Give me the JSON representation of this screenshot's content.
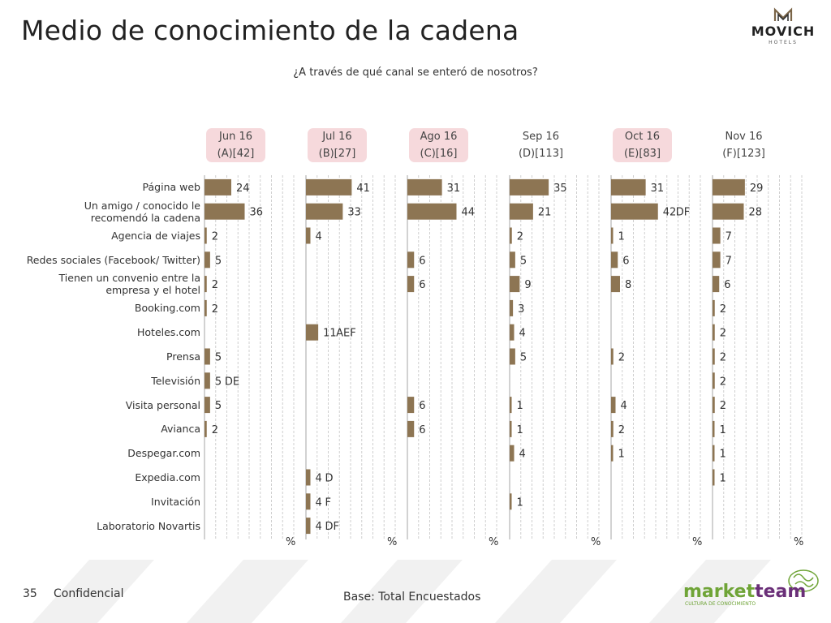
{
  "title": "Medio de conocimiento de la cadena",
  "subtitle": "¿A través de qué canal se enteró de nosotros?",
  "brand": {
    "line1": "MOVICH",
    "line2": "HOTELS"
  },
  "footer": {
    "page_number": "35",
    "confidential": "Confidencial",
    "base": "Base: Total Encuestados"
  },
  "marketteam_logo": {
    "word1": "market",
    "word2": "team",
    "tagline": "CULTURA DE CONOCIMIENTO"
  },
  "axis_unit": "%",
  "colors": {
    "bar": "#8d7553",
    "highlight": "#f6d9dc",
    "marketteam_green": "#6fa437",
    "marketteam_purple": "#6a2f78"
  },
  "chart_data": {
    "type": "bar",
    "orientation": "horizontal",
    "xlim": [
      0,
      80
    ],
    "categories": [
      "Página web",
      "Un amigo / conocido le recomendó la cadena",
      "Agencia de viajes",
      "Redes sociales (Facebook/ Twitter)",
      "Tienen un convenio entre la empresa y el hotel",
      "Booking.com",
      "Hoteles.com",
      "Prensa",
      "Televisión",
      "Visita personal",
      "Avianca",
      "Despegar.com",
      "Expedia.com",
      "Invitación",
      "Laboratorio Novartis"
    ],
    "category_lines": [
      [
        "Página web"
      ],
      [
        "Un amigo / conocido le",
        "recomendó la cadena"
      ],
      [
        "Agencia de viajes"
      ],
      [
        "Redes sociales (Facebook/ Twitter)"
      ],
      [
        "Tienen un convenio entre la",
        "empresa y el hotel"
      ],
      [
        "Booking.com"
      ],
      [
        "Hoteles.com"
      ],
      [
        "Prensa"
      ],
      [
        "Televisión"
      ],
      [
        "Visita personal"
      ],
      [
        "Avianca"
      ],
      [
        "Despegar.com"
      ],
      [
        "Expedia.com"
      ],
      [
        "Invitación"
      ],
      [
        "Laboratorio Novartis"
      ]
    ],
    "series": [
      {
        "name": "Jun 16",
        "code": "(A)[42]",
        "highlight": true,
        "values": [
          24,
          36,
          2,
          5,
          2,
          2,
          null,
          5,
          5,
          5,
          2,
          null,
          null,
          null,
          null
        ],
        "sig": [
          "",
          "",
          "",
          "",
          "",
          "",
          "",
          "",
          "DE",
          "",
          "",
          "",
          "",
          "",
          ""
        ]
      },
      {
        "name": "Jul 16",
        "code": "(B)[27]",
        "highlight": true,
        "values": [
          41,
          33,
          4,
          null,
          null,
          null,
          11,
          null,
          null,
          null,
          null,
          null,
          4,
          4,
          4
        ],
        "sig": [
          "",
          "",
          "",
          "",
          "",
          "",
          "AEF",
          "",
          "",
          "",
          "",
          "",
          "D",
          "F",
          "DF"
        ]
      },
      {
        "name": "Ago 16",
        "code": "(C)[16]",
        "highlight": true,
        "values": [
          31,
          44,
          null,
          6,
          6,
          null,
          null,
          null,
          null,
          6,
          6,
          null,
          null,
          null,
          null
        ],
        "sig": [
          "",
          "",
          "",
          "",
          "",
          "",
          "",
          "",
          "",
          "",
          "",
          "",
          "",
          "",
          ""
        ]
      },
      {
        "name": "Sep 16",
        "code": "(D)[113]",
        "highlight": false,
        "values": [
          35,
          21,
          2,
          5,
          9,
          3,
          4,
          5,
          null,
          1,
          1,
          4,
          null,
          1,
          null
        ],
        "sig": [
          "",
          "",
          "",
          "",
          "",
          "",
          "",
          "",
          "",
          "",
          "",
          "",
          "",
          "",
          ""
        ]
      },
      {
        "name": "Oct 16",
        "code": "(E)[83]",
        "highlight": true,
        "values": [
          31,
          42,
          1,
          6,
          8,
          null,
          null,
          2,
          null,
          4,
          2,
          1,
          null,
          null,
          null
        ],
        "sig": [
          "",
          "DF",
          "",
          "",
          "",
          "",
          "",
          "",
          "",
          "",
          "",
          "",
          "",
          "",
          ""
        ]
      },
      {
        "name": "Nov 16",
        "code": "(F)[123]",
        "highlight": false,
        "values": [
          29,
          28,
          7,
          7,
          6,
          2,
          2,
          2,
          2,
          2,
          1,
          1,
          1,
          null,
          null
        ],
        "sig": [
          "",
          "",
          "",
          "",
          "",
          "",
          "",
          "",
          "",
          "",
          "",
          "",
          "",
          "",
          ""
        ]
      }
    ]
  }
}
